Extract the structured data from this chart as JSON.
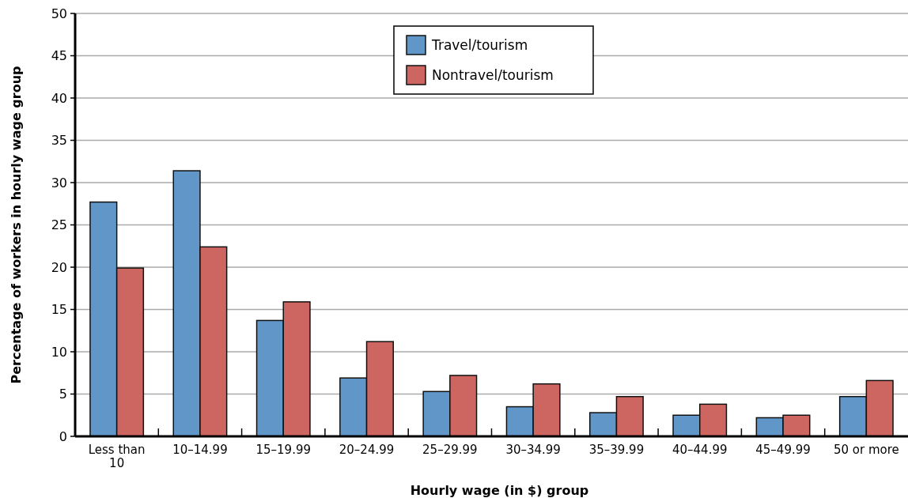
{
  "chart_data": {
    "type": "bar",
    "xlabel": "Hourly wage (in $) group",
    "ylabel": "Percentage of workers in hourly wage group",
    "categories": [
      "Less than 10",
      "10–14.99",
      "15–19.99",
      "20–24.99",
      "25–29.99",
      "30–34.99",
      "35–39.99",
      "40–44.99",
      "45–49.99",
      "50 or more"
    ],
    "series": [
      {
        "name": "Travel/tourism",
        "color": "#6097c8",
        "values": [
          27.7,
          31.4,
          13.7,
          6.9,
          5.3,
          3.5,
          2.8,
          2.5,
          2.2,
          4.7
        ]
      },
      {
        "name": "Nontravel/tourism",
        "color": "#cd6660",
        "values": [
          19.9,
          22.4,
          15.9,
          11.2,
          7.2,
          6.2,
          4.7,
          3.8,
          2.5,
          6.6
        ]
      }
    ],
    "ylim": [
      0,
      50
    ],
    "yticks": [
      0,
      5,
      10,
      15,
      20,
      25,
      30,
      35,
      40,
      45,
      50
    ],
    "grid": "y",
    "legend": "top"
  }
}
